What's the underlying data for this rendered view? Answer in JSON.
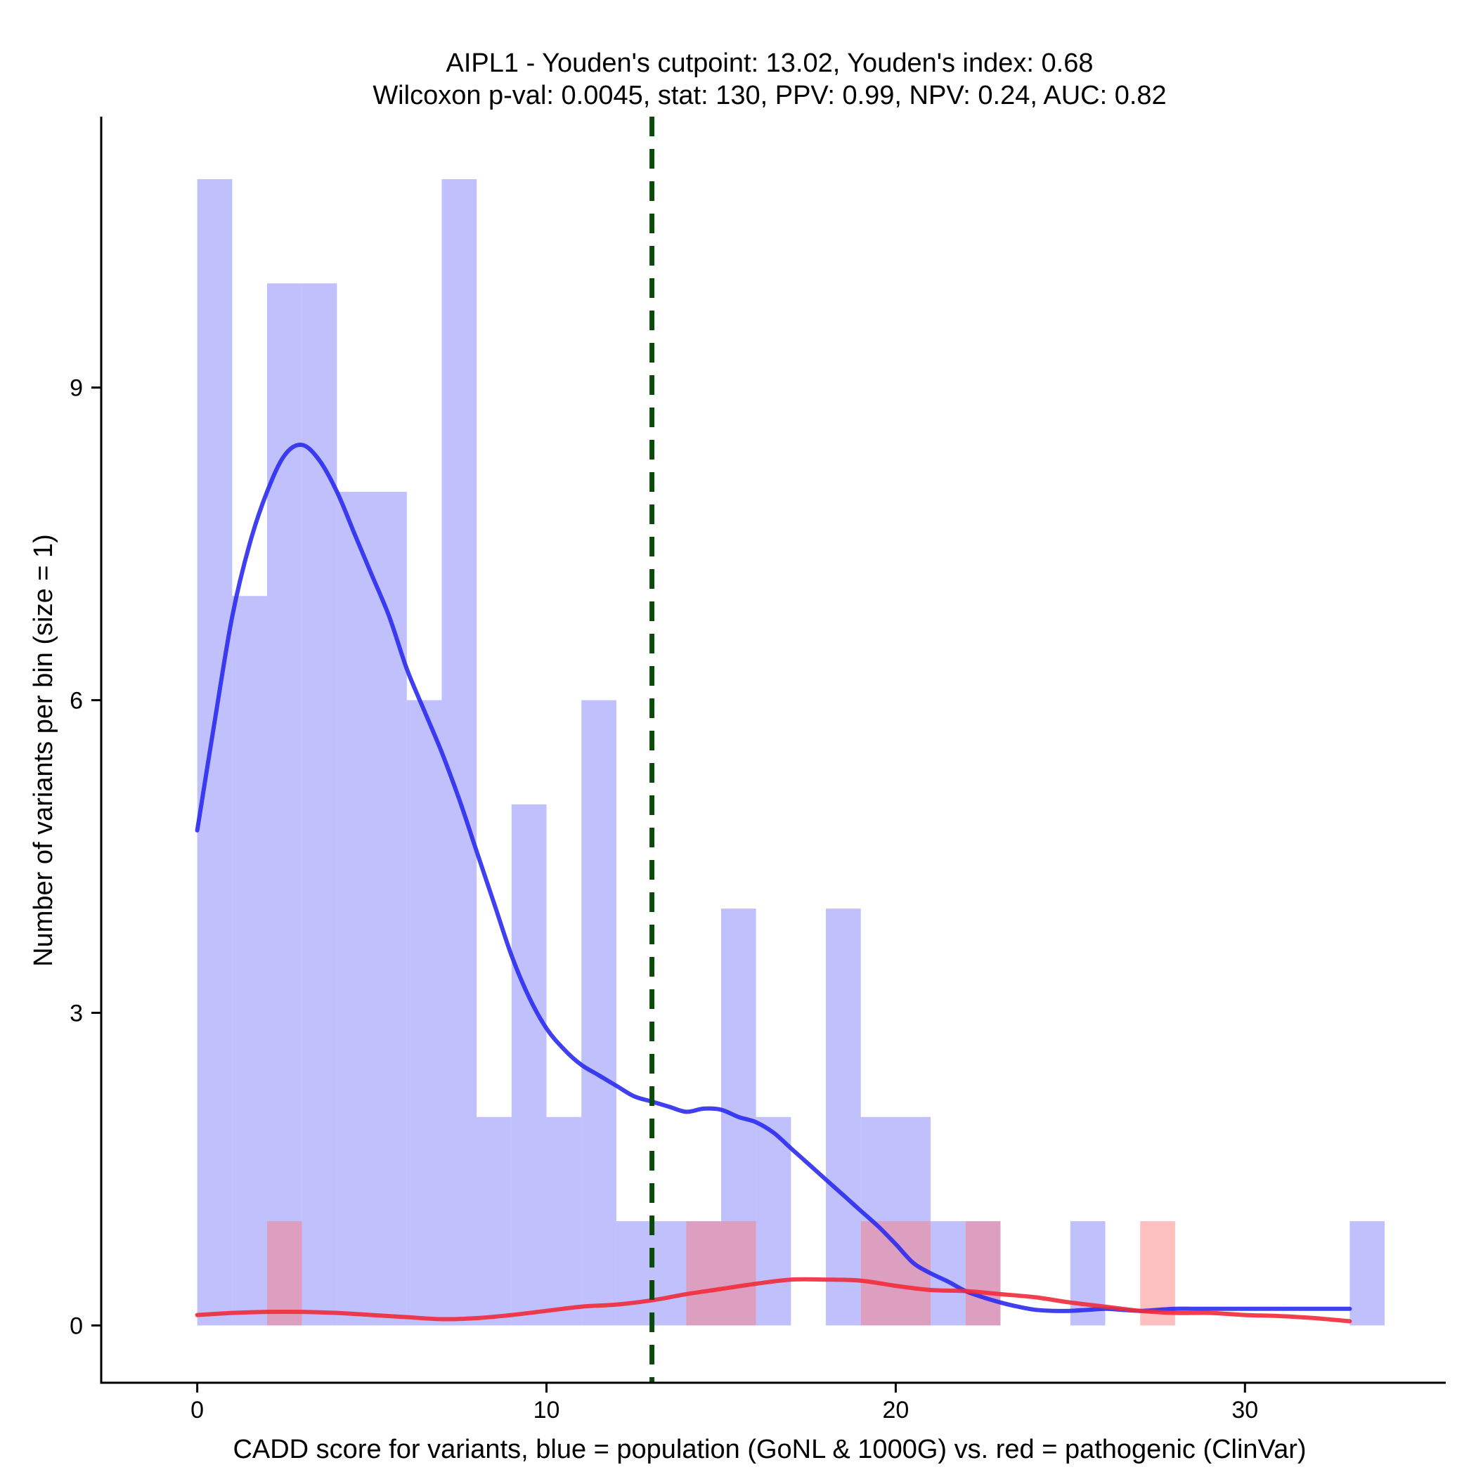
{
  "chart_data": {
    "type": "histogram",
    "title_line1": "AIPL1 - Youden's cutpoint: 13.02, Youden's index: 0.68",
    "title_line2": "Wilcoxon p-val: 0.0045, stat: 130, PPV: 0.99, NPV: 0.24, AUC: 0.82",
    "xlabel": "CADD score for variants, blue = population (GoNL & 1000G) vs. red = pathogenic (ClinVar)",
    "ylabel": "Number of variants per bin (size = 1)",
    "xlim": [
      -2.75,
      35.75
    ],
    "ylim": [
      -0.55,
      11.6
    ],
    "xticks": [
      0,
      10,
      20,
      30
    ],
    "xtick_labels": [
      "0",
      "10",
      "20",
      "30"
    ],
    "yticks": [
      0,
      3,
      6,
      9
    ],
    "ytick_labels": [
      "0",
      "3",
      "6",
      "9"
    ],
    "bin_width": 1,
    "series": [
      {
        "name": "population (GoNL & 1000G)",
        "color": "#7b7bfa",
        "opacity": 0.48,
        "bins": [
          {
            "start": 0,
            "count": 11
          },
          {
            "start": 1,
            "count": 7
          },
          {
            "start": 2,
            "count": 10
          },
          {
            "start": 3,
            "count": 10
          },
          {
            "start": 4,
            "count": 8
          },
          {
            "start": 5,
            "count": 8
          },
          {
            "start": 6,
            "count": 6
          },
          {
            "start": 7,
            "count": 11
          },
          {
            "start": 8,
            "count": 2
          },
          {
            "start": 9,
            "count": 5
          },
          {
            "start": 10,
            "count": 2
          },
          {
            "start": 11,
            "count": 6
          },
          {
            "start": 12,
            "count": 1
          },
          {
            "start": 13,
            "count": 1
          },
          {
            "start": 14,
            "count": 1
          },
          {
            "start": 15,
            "count": 4
          },
          {
            "start": 16,
            "count": 2
          },
          {
            "start": 17,
            "count": 0
          },
          {
            "start": 18,
            "count": 4
          },
          {
            "start": 19,
            "count": 2
          },
          {
            "start": 20,
            "count": 2
          },
          {
            "start": 21,
            "count": 1
          },
          {
            "start": 22,
            "count": 1
          },
          {
            "start": 23,
            "count": 0
          },
          {
            "start": 24,
            "count": 0
          },
          {
            "start": 25,
            "count": 1
          },
          {
            "start": 26,
            "count": 0
          },
          {
            "start": 27,
            "count": 0
          },
          {
            "start": 28,
            "count": 0
          },
          {
            "start": 29,
            "count": 0
          },
          {
            "start": 30,
            "count": 0
          },
          {
            "start": 31,
            "count": 0
          },
          {
            "start": 32,
            "count": 0
          },
          {
            "start": 33,
            "count": 1
          }
        ],
        "kde_x": [
          0,
          0.5,
          1,
          1.5,
          2,
          2.5,
          3,
          3.5,
          4,
          4.5,
          5,
          5.5,
          6,
          6.5,
          7,
          7.5,
          8,
          8.5,
          9,
          9.5,
          10,
          10.5,
          11,
          11.5,
          12,
          12.5,
          13,
          13.5,
          14,
          14.5,
          15,
          15.5,
          16,
          16.5,
          17,
          17.5,
          18,
          18.5,
          19,
          19.5,
          20,
          20.5,
          21,
          21.5,
          22,
          22.5,
          23,
          23.5,
          24,
          24.5,
          25,
          25.5,
          26,
          26.5,
          27,
          27.5,
          28,
          28.5,
          29,
          29.5,
          30,
          30.5,
          31,
          31.5,
          32,
          32.5,
          33
        ],
        "kde_y": [
          4.75,
          5.8,
          6.8,
          7.5,
          8.0,
          8.35,
          8.45,
          8.3,
          8.0,
          7.6,
          7.2,
          6.8,
          6.3,
          5.9,
          5.5,
          5.05,
          4.55,
          4.05,
          3.55,
          3.15,
          2.85,
          2.65,
          2.5,
          2.4,
          2.3,
          2.2,
          2.15,
          2.1,
          2.05,
          2.08,
          2.07,
          2.0,
          1.95,
          1.85,
          1.7,
          1.55,
          1.4,
          1.25,
          1.1,
          0.95,
          0.78,
          0.6,
          0.5,
          0.42,
          0.33,
          0.27,
          0.22,
          0.18,
          0.15,
          0.14,
          0.14,
          0.15,
          0.16,
          0.15,
          0.14,
          0.15,
          0.16,
          0.16,
          0.16,
          0.16,
          0.16,
          0.16,
          0.16,
          0.16,
          0.16,
          0.16,
          0.16
        ]
      },
      {
        "name": "pathogenic (ClinVar)",
        "color": "#fa7b7b",
        "opacity": 0.48,
        "bins": [
          {
            "start": 2,
            "count": 1
          },
          {
            "start": 14,
            "count": 1
          },
          {
            "start": 15,
            "count": 1
          },
          {
            "start": 19,
            "count": 1
          },
          {
            "start": 20,
            "count": 1
          },
          {
            "start": 22,
            "count": 1
          },
          {
            "start": 27,
            "count": 1
          }
        ],
        "kde_x": [
          0,
          1,
          2,
          3,
          4,
          5,
          6,
          7,
          8,
          9,
          10,
          11,
          12,
          13,
          14,
          15,
          16,
          17,
          18,
          19,
          20,
          21,
          22,
          23,
          24,
          25,
          26,
          27,
          28,
          29,
          30,
          31,
          32,
          33
        ],
        "kde_y": [
          0.1,
          0.12,
          0.13,
          0.13,
          0.12,
          0.1,
          0.08,
          0.06,
          0.07,
          0.1,
          0.14,
          0.18,
          0.2,
          0.24,
          0.3,
          0.35,
          0.4,
          0.44,
          0.44,
          0.43,
          0.38,
          0.34,
          0.33,
          0.3,
          0.27,
          0.22,
          0.18,
          0.14,
          0.12,
          0.12,
          0.1,
          0.09,
          0.07,
          0.04
        ]
      }
    ],
    "cutpoint": {
      "value": 13.02,
      "color": "#0b4a0b"
    },
    "curve_colors": {
      "population": "#2b2bf0",
      "pathogenic": "#f22a3a"
    },
    "grid": false
  }
}
